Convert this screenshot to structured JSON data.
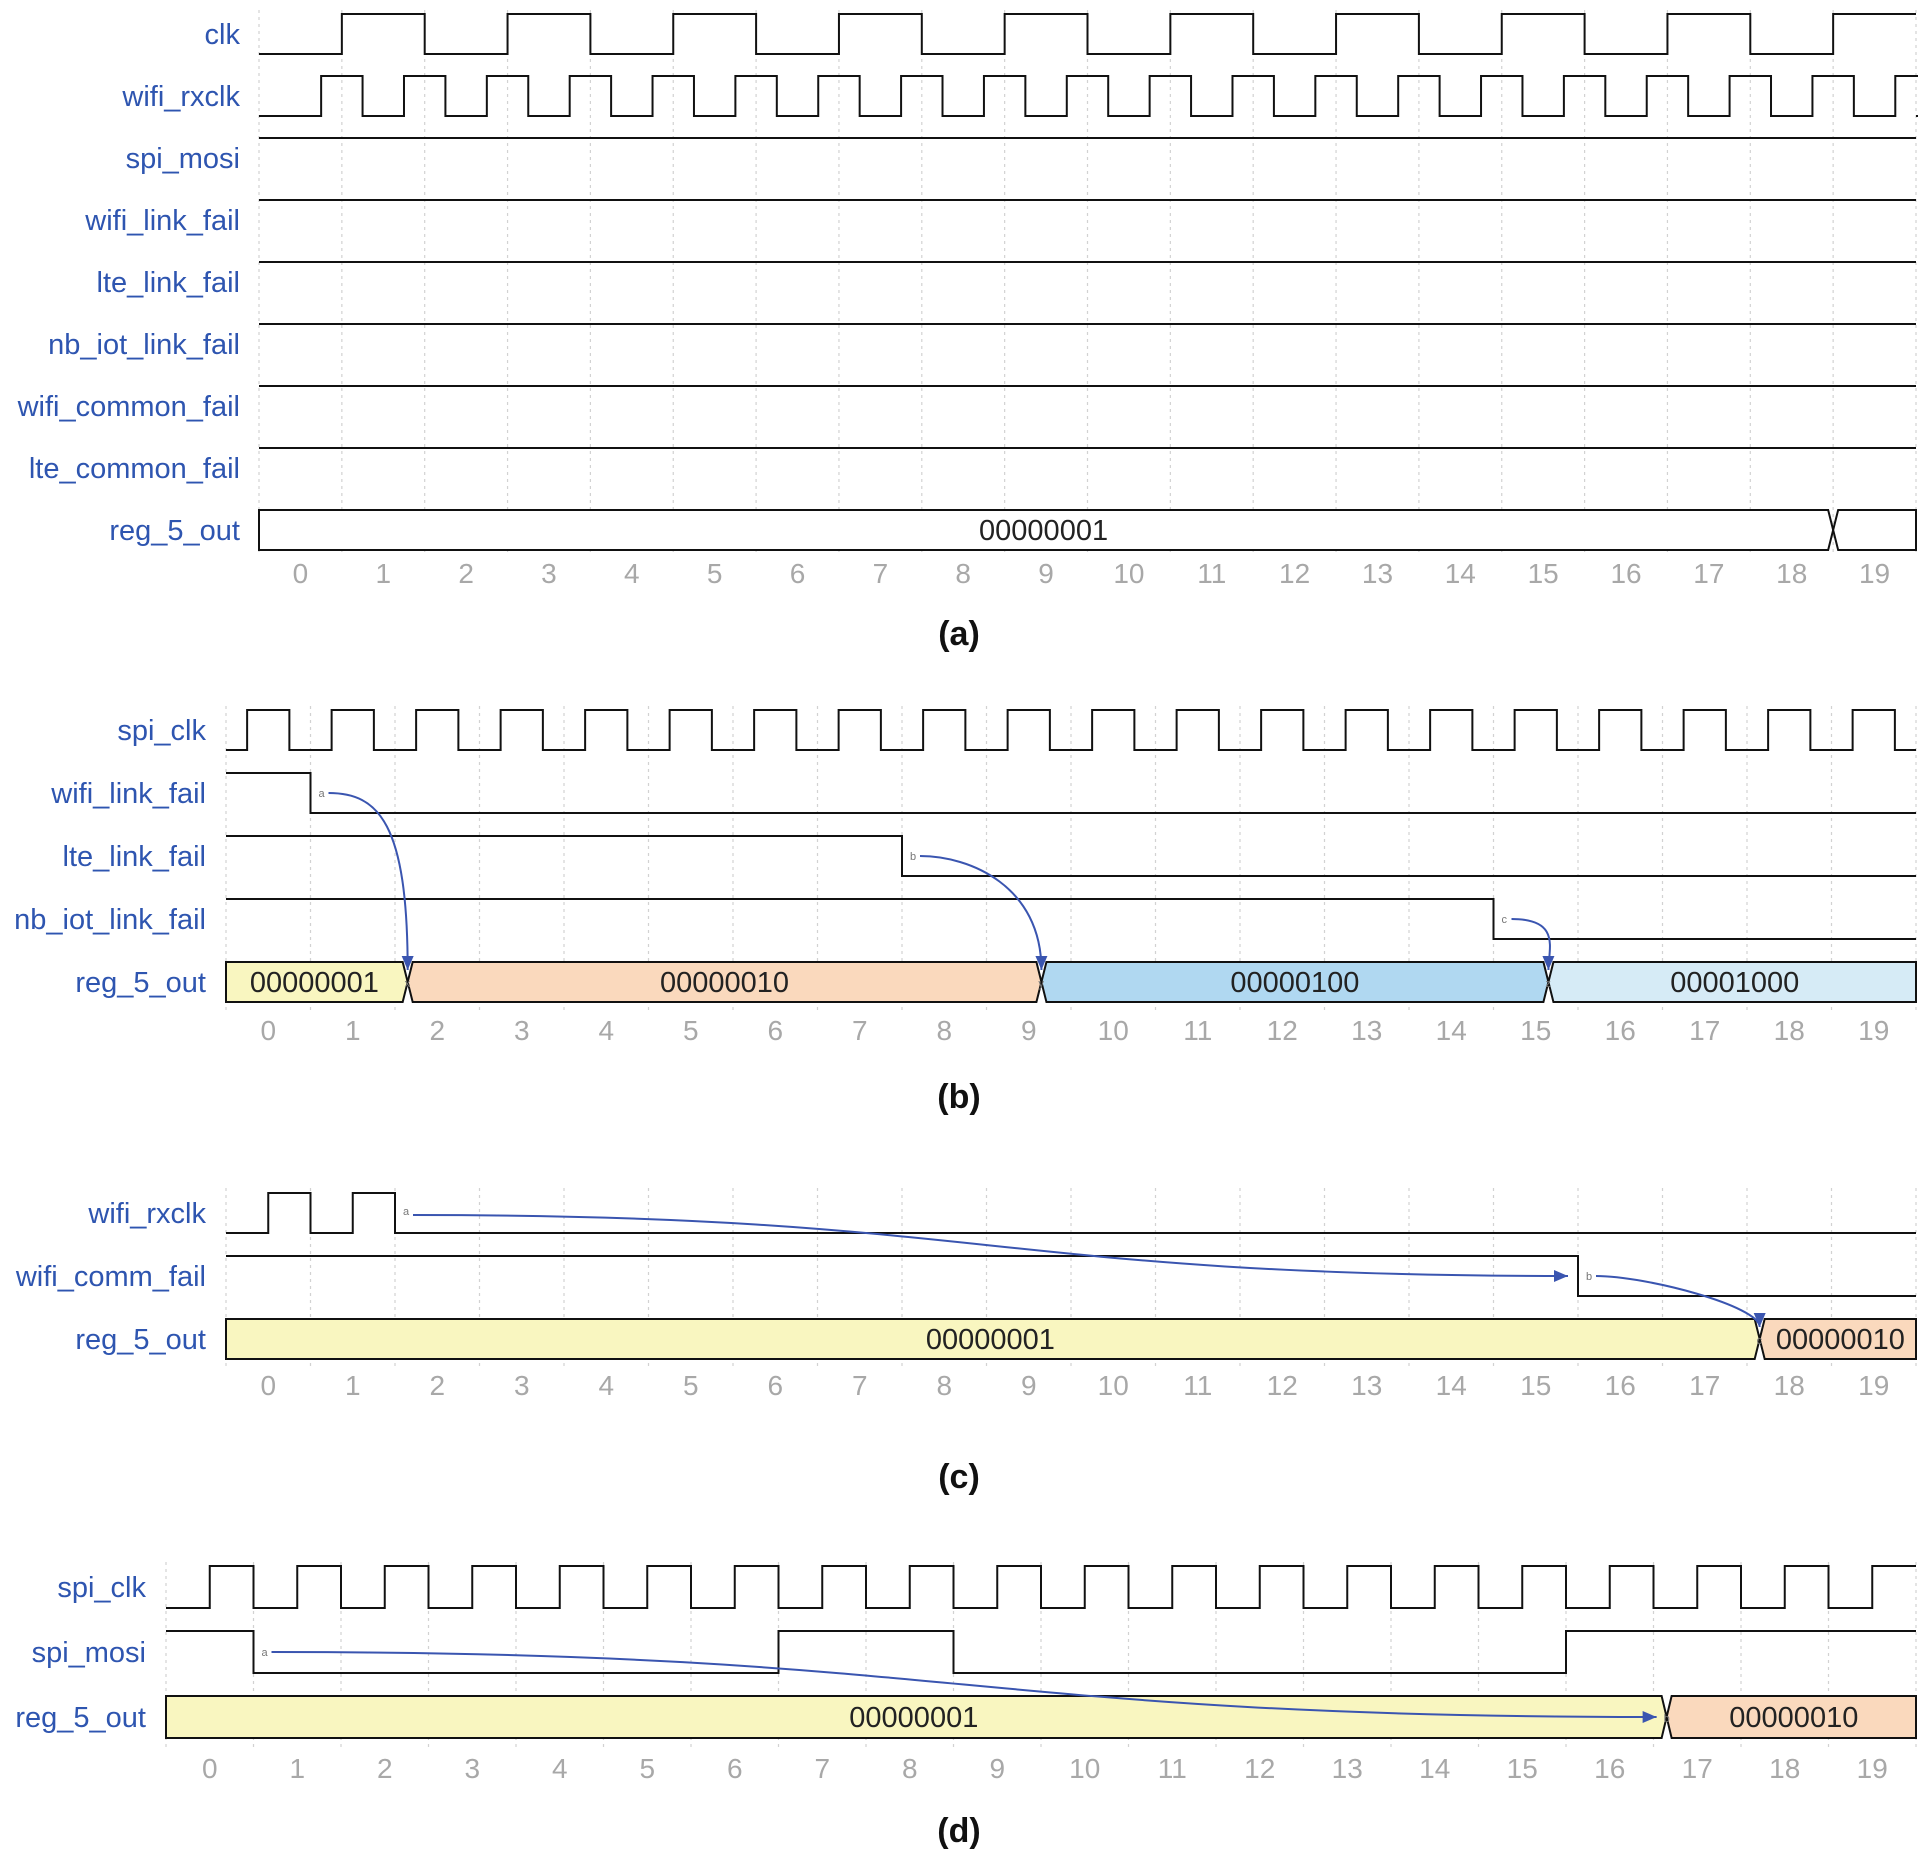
{
  "colors": {
    "label": "#2e55b0",
    "tick": "#a8a8a8",
    "wave": "#111111",
    "grid": "#d2d2d2",
    "arrow": "#3a55b0",
    "yellow": "#f9f6c0",
    "orange": "#fad9bd",
    "blue": "#b0d8f1",
    "lightblue": "#d6ebf6",
    "white": "#ffffff"
  },
  "panels": [
    {
      "caption": "(a)",
      "signals": [
        {
          "name": "clk",
          "type": "clock",
          "period": 2,
          "start": 0,
          "end": 20,
          "edges": [
            [
              0.5,
              1
            ],
            [
              1.5,
              0
            ],
            [
              2.5,
              1
            ],
            [
              3.5,
              0
            ],
            [
              4.5,
              1
            ],
            [
              5.5,
              0
            ],
            [
              6.5,
              1
            ],
            [
              7.5,
              0
            ],
            [
              8.5,
              1
            ],
            [
              9.5,
              0
            ],
            [
              10.5,
              1
            ],
            [
              11.5,
              0
            ],
            [
              12.5,
              1
            ],
            [
              13.5,
              0
            ],
            [
              14.5,
              1
            ],
            [
              15.5,
              0
            ],
            [
              16.5,
              1
            ],
            [
              17.5,
              0
            ],
            [
              18.5,
              1
            ]
          ],
          "init": 0
        },
        {
          "name": "wifi_rxclk",
          "type": "clock",
          "start": 0,
          "end": 20,
          "init": 0,
          "edges": [
            [
              0.25,
              1
            ],
            [
              0.75,
              0
            ],
            [
              1.25,
              1
            ],
            [
              1.75,
              0
            ],
            [
              2.25,
              1
            ],
            [
              2.75,
              0
            ],
            [
              3.25,
              1
            ],
            [
              3.75,
              0
            ],
            [
              4.25,
              1
            ],
            [
              4.75,
              0
            ],
            [
              5.25,
              1
            ],
            [
              5.75,
              0
            ],
            [
              6.25,
              1
            ],
            [
              6.75,
              0
            ],
            [
              7.25,
              1
            ],
            [
              7.75,
              0
            ],
            [
              8.25,
              1
            ],
            [
              8.75,
              0
            ],
            [
              9.25,
              1
            ],
            [
              9.75,
              0
            ],
            [
              10.25,
              1
            ],
            [
              10.75,
              0
            ],
            [
              11.25,
              1
            ],
            [
              11.75,
              0
            ],
            [
              12.25,
              1
            ],
            [
              12.75,
              0
            ],
            [
              13.25,
              1
            ],
            [
              13.75,
              0
            ],
            [
              14.25,
              1
            ],
            [
              14.75,
              0
            ],
            [
              15.25,
              1
            ],
            [
              15.75,
              0
            ],
            [
              16.25,
              1
            ],
            [
              16.75,
              0
            ],
            [
              17.25,
              1
            ],
            [
              17.75,
              0
            ],
            [
              18.25,
              1
            ],
            [
              18.75,
              0
            ],
            [
              19.25,
              1
            ],
            [
              19.75,
              0
            ]
          ]
        },
        {
          "name": "spi_mosi",
          "type": "bit",
          "init": 1,
          "edges": []
        },
        {
          "name": "wifi_link_fail",
          "type": "bit",
          "init": 1,
          "edges": []
        },
        {
          "name": "lte_link_fail",
          "type": "bit",
          "init": 1,
          "edges": []
        },
        {
          "name": "nb_iot_link_fail",
          "type": "bit",
          "init": 1,
          "edges": []
        },
        {
          "name": "wifi_common_fail",
          "type": "bit",
          "init": 1,
          "edges": []
        },
        {
          "name": "lte_common_fail",
          "type": "bit",
          "init": 1,
          "edges": []
        },
        {
          "name": "reg_5_out",
          "type": "bus",
          "segments": [
            {
              "start": -0.5,
              "end": 18.5,
              "value": "00000001",
              "color": "white"
            },
            {
              "start": 18.5,
              "end": 19.5,
              "value": "",
              "color": "white"
            }
          ]
        }
      ],
      "ticks": [
        "0",
        "1",
        "2",
        "3",
        "4",
        "5",
        "6",
        "7",
        "8",
        "9",
        "10",
        "11",
        "12",
        "13",
        "14",
        "15",
        "16",
        "17",
        "18",
        "19"
      ],
      "arrows": []
    },
    {
      "caption": "(b)",
      "signals": [
        {
          "name": "spi_clk",
          "type": "clock",
          "init": 0,
          "edges": [
            [
              -0.25,
              1
            ],
            [
              0.25,
              0
            ],
            [
              0.75,
              1
            ],
            [
              1.25,
              0
            ],
            [
              1.75,
              1
            ],
            [
              2.25,
              0
            ],
            [
              2.75,
              1
            ],
            [
              3.25,
              0
            ],
            [
              3.75,
              1
            ],
            [
              4.25,
              0
            ],
            [
              4.75,
              1
            ],
            [
              5.25,
              0
            ],
            [
              5.75,
              1
            ],
            [
              6.25,
              0
            ],
            [
              6.75,
              1
            ],
            [
              7.25,
              0
            ],
            [
              7.75,
              1
            ],
            [
              8.25,
              0
            ],
            [
              8.75,
              1
            ],
            [
              9.25,
              0
            ],
            [
              9.75,
              1
            ],
            [
              10.25,
              0
            ],
            [
              10.75,
              1
            ],
            [
              11.25,
              0
            ],
            [
              11.75,
              1
            ],
            [
              12.25,
              0
            ],
            [
              12.75,
              1
            ],
            [
              13.25,
              0
            ],
            [
              13.75,
              1
            ],
            [
              14.25,
              0
            ],
            [
              14.75,
              1
            ],
            [
              15.25,
              0
            ],
            [
              15.75,
              1
            ],
            [
              16.25,
              0
            ],
            [
              16.75,
              1
            ],
            [
              17.25,
              0
            ],
            [
              17.75,
              1
            ],
            [
              18.25,
              0
            ],
            [
              18.75,
              1
            ],
            [
              19.25,
              0
            ]
          ]
        },
        {
          "name": "wifi_link_fail",
          "type": "bit",
          "init": 1,
          "edges": [
            [
              0.5,
              0
            ]
          ],
          "node": {
            "label": "a",
            "at": 0.5
          }
        },
        {
          "name": "lte_link_fail",
          "type": "bit",
          "init": 1,
          "edges": [
            [
              7.5,
              0
            ]
          ],
          "node": {
            "label": "b",
            "at": 7.5
          }
        },
        {
          "name": "nb_iot_link_fail",
          "type": "bit",
          "init": 1,
          "edges": [
            [
              14.5,
              0
            ]
          ],
          "node": {
            "label": "c",
            "at": 14.5
          }
        },
        {
          "name": "reg_5_out",
          "type": "bus",
          "segments": [
            {
              "start": -0.5,
              "end": 1.65,
              "value": "00000001",
              "color": "yellow"
            },
            {
              "start": 1.65,
              "end": 9.15,
              "value": "00000010",
              "color": "orange",
              "node": "x"
            },
            {
              "start": 9.15,
              "end": 15.15,
              "value": "00000100",
              "color": "blue",
              "node": "y"
            },
            {
              "start": 15.15,
              "end": 19.5,
              "value": "00001000",
              "color": "lightblue",
              "node": "z"
            }
          ]
        }
      ],
      "ticks": [
        "0",
        "1",
        "2",
        "3",
        "4",
        "5",
        "6",
        "7",
        "8",
        "9",
        "10",
        "11",
        "12",
        "13",
        "14",
        "15",
        "16",
        "17",
        "18",
        "19"
      ],
      "arrows": [
        {
          "from_signal": 1,
          "from_t": 0.5,
          "to_signal": 4,
          "to_t": 1.65
        },
        {
          "from_signal": 2,
          "from_t": 7.5,
          "to_signal": 4,
          "to_t": 9.15
        },
        {
          "from_signal": 3,
          "from_t": 14.5,
          "to_signal": 4,
          "to_t": 15.15
        }
      ]
    },
    {
      "caption": "(c)",
      "signals": [
        {
          "name": "wifi_rxclk",
          "type": "clock",
          "init": 0,
          "edges": [
            [
              -0.5,
              0
            ],
            [
              0,
              1
            ],
            [
              0.5,
              0
            ],
            [
              1,
              1
            ],
            [
              1.5,
              0
            ]
          ],
          "node": {
            "label": "a",
            "at": 1.5
          }
        },
        {
          "name": "wifi_comm_fail",
          "type": "bit",
          "init": 1,
          "edges": [
            [
              15.5,
              0
            ]
          ],
          "node": {
            "label": "b",
            "at": 15.5
          }
        },
        {
          "name": "reg_5_out",
          "type": "bus",
          "segments": [
            {
              "start": -0.5,
              "end": 17.65,
              "value": "00000001",
              "color": "yellow"
            },
            {
              "start": 17.65,
              "end": 19.5,
              "value": "00000010",
              "color": "orange",
              "node": "c"
            }
          ]
        }
      ],
      "ticks": [
        "0",
        "1",
        "2",
        "3",
        "4",
        "5",
        "6",
        "7",
        "8",
        "9",
        "10",
        "11",
        "12",
        "13",
        "14",
        "15",
        "16",
        "17",
        "18",
        "19"
      ],
      "arrows": [
        {
          "from_signal": 0,
          "from_t": 1.5,
          "to_signal": 1,
          "to_t": 15.5,
          "style": "long"
        },
        {
          "from_signal": 1,
          "from_t": 15.5,
          "to_signal": 2,
          "to_t": 17.65
        }
      ]
    },
    {
      "caption": "(d)",
      "signals": [
        {
          "name": "spi_clk",
          "type": "clock",
          "init": 0,
          "edges": [
            [
              -0.5,
              0
            ],
            [
              0,
              1
            ],
            [
              0.5,
              0
            ],
            [
              1,
              1
            ],
            [
              1.5,
              0
            ],
            [
              2,
              1
            ],
            [
              2.5,
              0
            ],
            [
              3,
              1
            ],
            [
              3.5,
              0
            ],
            [
              4,
              1
            ],
            [
              4.5,
              0
            ],
            [
              5,
              1
            ],
            [
              5.5,
              0
            ],
            [
              6,
              1
            ],
            [
              6.5,
              0
            ],
            [
              7,
              1
            ],
            [
              7.5,
              0
            ],
            [
              8,
              1
            ],
            [
              8.5,
              0
            ],
            [
              9,
              1
            ],
            [
              9.5,
              0
            ],
            [
              10,
              1
            ],
            [
              10.5,
              0
            ],
            [
              11,
              1
            ],
            [
              11.5,
              0
            ],
            [
              12,
              1
            ],
            [
              12.5,
              0
            ],
            [
              13,
              1
            ],
            [
              13.5,
              0
            ],
            [
              14,
              1
            ],
            [
              14.5,
              0
            ],
            [
              15,
              1
            ],
            [
              15.5,
              0
            ],
            [
              16,
              1
            ],
            [
              16.5,
              0
            ],
            [
              17,
              1
            ],
            [
              17.5,
              0
            ],
            [
              18,
              1
            ],
            [
              18.5,
              0
            ],
            [
              19,
              1
            ]
          ]
        },
        {
          "name": "spi_mosi",
          "type": "bit",
          "init": 1,
          "edges": [
            [
              0.5,
              0
            ],
            [
              6.5,
              1
            ],
            [
              8.5,
              0
            ],
            [
              15.5,
              1
            ]
          ],
          "node": {
            "label": "a",
            "at": 0.5
          }
        },
        {
          "name": "reg_5_out",
          "type": "bus",
          "segments": [
            {
              "start": -0.5,
              "end": 16.65,
              "value": "00000001",
              "color": "yellow"
            },
            {
              "start": 16.65,
              "end": 19.5,
              "value": "00000010",
              "color": "orange",
              "node": "b"
            }
          ]
        }
      ],
      "ticks": [
        "0",
        "1",
        "2",
        "3",
        "4",
        "5",
        "6",
        "7",
        "8",
        "9",
        "10",
        "11",
        "12",
        "13",
        "14",
        "15",
        "16",
        "17",
        "18",
        "19"
      ],
      "arrows": [
        {
          "from_signal": 1,
          "from_t": 0.5,
          "to_signal": 2,
          "to_t": 16.65,
          "style": "long"
        }
      ]
    }
  ]
}
